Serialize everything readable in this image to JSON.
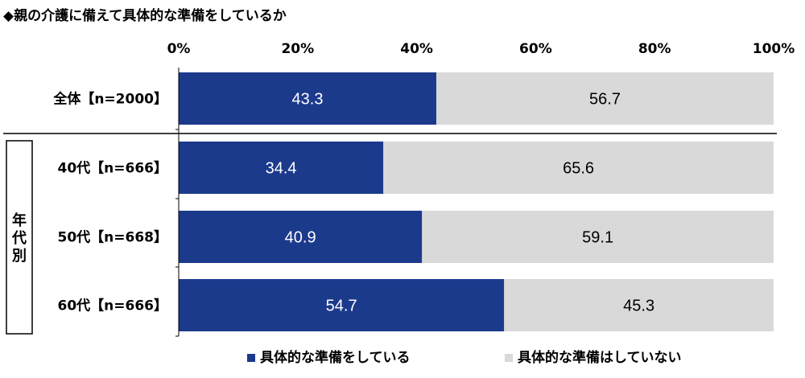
{
  "title": "◆親の介護に備えて具体的な準備をしているか",
  "chart_data": {
    "type": "bar",
    "orientation": "horizontal",
    "stacked": true,
    "categories": [
      "全体【n=2000】",
      "40代【n=666】",
      "50代【n=668】",
      "60代【n=666】"
    ],
    "group_label": "年代別",
    "grouped_categories": [
      "40代【n=666】",
      "50代【n=668】",
      "60代【n=666】"
    ],
    "series": [
      {
        "name": "具体的な準備をしている",
        "values": [
          43.3,
          34.4,
          40.9,
          54.7
        ],
        "color": "#1b3a8c"
      },
      {
        "name": "具体的な準備はしていない",
        "values": [
          56.7,
          65.6,
          59.1,
          45.3
        ],
        "color": "#d9d9d9"
      }
    ],
    "value_labels": [
      [
        "43.3",
        "34.4",
        "40.9",
        "54.7"
      ],
      [
        "56.7",
        "65.6",
        "59.1",
        "45.3"
      ]
    ],
    "xlim": [
      0,
      100
    ],
    "x_ticks": [
      "0%",
      "20%",
      "40%",
      "60%",
      "80%",
      "100%"
    ],
    "grid": false,
    "legend_position": "bottom"
  }
}
